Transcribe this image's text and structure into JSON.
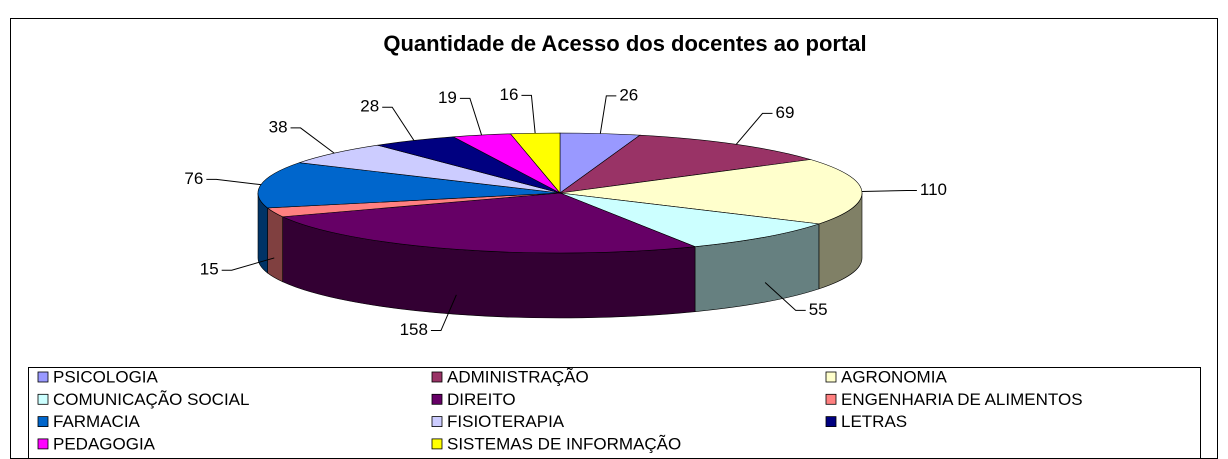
{
  "chart_data": {
    "type": "pie",
    "title": "Quantidade de Acesso dos docentes ao portal",
    "categories": [
      "PSICOLOGIA",
      "ADMINISTRAÇÃO",
      "AGRONOMIA",
      "COMUNICAÇÃO SOCIAL",
      "DIREITO",
      "ENGENHARIA DE ALIMENTOS",
      "FARMACIA",
      "FISIOTERAPIA",
      "LETRAS",
      "PEDAGOGIA",
      "SISTEMAS DE INFORMAÇÃO"
    ],
    "values": [
      26,
      69,
      110,
      55,
      158,
      15,
      76,
      38,
      28,
      19,
      16
    ],
    "colors": [
      "#9999ff",
      "#993366",
      "#ffffcc",
      "#ccffff",
      "#660066",
      "#ff8080",
      "#0066cc",
      "#ccccff",
      "#000080",
      "#ff00ff",
      "#ffff00"
    ],
    "legend": "bottom"
  }
}
